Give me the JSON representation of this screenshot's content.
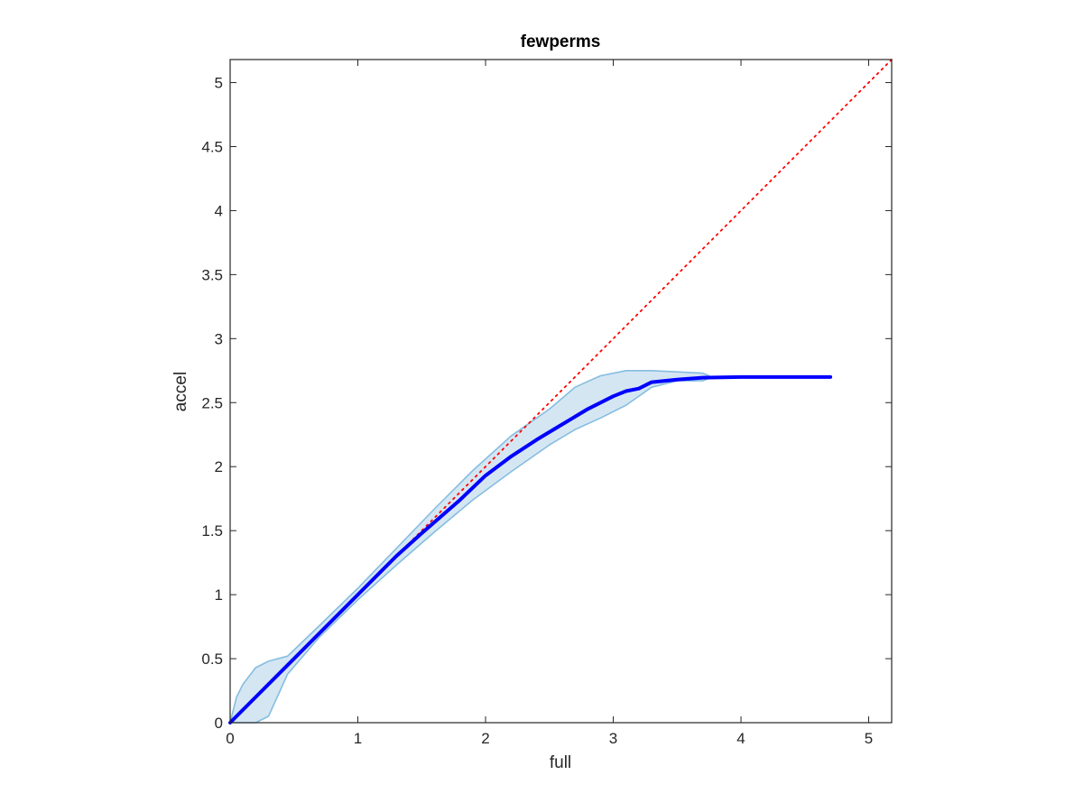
{
  "chart_data": {
    "type": "line",
    "title": "fewperms",
    "xlabel": "full",
    "ylabel": "accel",
    "xlim": [
      0,
      5.18
    ],
    "ylim": [
      0,
      5.18
    ],
    "xticks": [
      0,
      1,
      2,
      3,
      4,
      5
    ],
    "xtick_labels": [
      "0",
      "1",
      "2",
      "3",
      "4",
      "5"
    ],
    "yticks": [
      0,
      0.5,
      1,
      1.5,
      2,
      2.5,
      3,
      3.5,
      4,
      4.5,
      5
    ],
    "ytick_labels": [
      "0",
      "0.5",
      "1",
      "1.5",
      "2",
      "2.5",
      "3",
      "3.5",
      "4",
      "4.5",
      "5"
    ],
    "grid": false,
    "colors": {
      "mean_line": "#0000ff",
      "band_fill": "#d5e6f3",
      "band_edge": "#85bde0",
      "reference_line": "#ff0000",
      "axes": "#262626"
    },
    "series": [
      {
        "style": "solid",
        "x": [
          0,
          0.2,
          0.5,
          0.8,
          1.0,
          1.3,
          1.5,
          1.8,
          2.0,
          2.2,
          2.4,
          2.6,
          2.8,
          3.0,
          3.1,
          3.2,
          3.3,
          3.5,
          3.7,
          4.0,
          4.3,
          4.7
        ],
        "y": [
          0,
          0.2,
          0.5,
          0.8,
          1.0,
          1.3,
          1.48,
          1.74,
          1.93,
          2.08,
          2.21,
          2.33,
          2.45,
          2.55,
          2.59,
          2.61,
          2.66,
          2.68,
          2.695,
          2.7,
          2.7,
          2.7
        ]
      },
      {
        "style": "band",
        "x": [
          0,
          0.05,
          0.1,
          0.2,
          0.3,
          0.45,
          0.7,
          1.0,
          1.3,
          1.6,
          1.9,
          2.2,
          2.5,
          2.7,
          2.9,
          3.1,
          3.3,
          3.5,
          3.7,
          3.75
        ],
        "upper": [
          0,
          0.2,
          0.3,
          0.43,
          0.48,
          0.52,
          0.76,
          1.05,
          1.36,
          1.67,
          1.97,
          2.24,
          2.45,
          2.62,
          2.71,
          2.75,
          2.75,
          2.74,
          2.73,
          2.71
        ],
        "lower": [
          0,
          0,
          0,
          0,
          0.05,
          0.38,
          0.67,
          0.96,
          1.23,
          1.49,
          1.74,
          1.96,
          2.17,
          2.29,
          2.38,
          2.48,
          2.62,
          2.67,
          2.67,
          2.69
        ]
      },
      {
        "style": "dotted",
        "x": [
          0,
          5.18
        ],
        "y": [
          0,
          5.18
        ]
      }
    ]
  }
}
